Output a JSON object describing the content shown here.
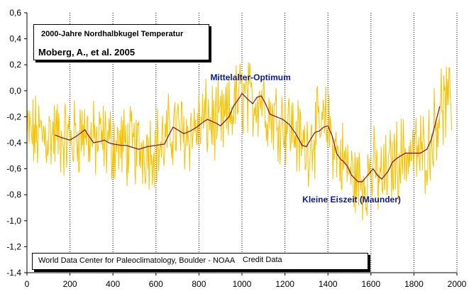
{
  "chart_data": {
    "type": "line",
    "title": "2000-Jahre Nordhalbkugel Temperatur",
    "subtitle": "Moberg, A., et al. 2005",
    "xlabel": "",
    "ylabel": "",
    "xlim": [
      0,
      2000
    ],
    "ylim": [
      -1.4,
      0.6
    ],
    "x_ticks": [
      "0",
      "200",
      "400",
      "600",
      "800",
      "1000",
      "1200",
      "1400",
      "1600",
      "1800",
      "2000"
    ],
    "y_ticks": [
      "0,6",
      "0,4",
      "0,2",
      "0,0",
      "-0,2",
      "-0,4",
      "-0,6",
      "-0,8",
      "-1,0",
      "-1,2",
      "-1,4"
    ],
    "grid": {
      "vertical": "dotted",
      "horizontal": false
    },
    "annotations": [
      {
        "text": "Mittelalter-Optimum",
        "x": 1040,
        "y": 0.08
      },
      {
        "text": "Kleine Eiszeit (Maunder)",
        "x": 1510,
        "y": -0.86
      }
    ],
    "credit": {
      "source": "World Data Center for Paleoclimatology, Boulder - NOAA",
      "note": "Credit Data"
    },
    "colors": {
      "annual": "#f5c200",
      "smoothed": "#7a0f2a",
      "annotation": "#0b1a8f"
    },
    "series": [
      {
        "x": [
          130,
          160,
          200,
          230,
          270,
          280,
          310,
          340,
          360,
          380,
          400,
          440,
          460,
          480,
          500,
          520,
          560,
          600,
          640,
          660,
          680,
          700,
          730,
          760,
          790,
          820,
          840,
          880,
          900,
          940,
          960,
          990,
          1000,
          1030,
          1050,
          1070,
          1090,
          1110,
          1130,
          1160,
          1190,
          1220,
          1250,
          1280,
          1300,
          1320,
          1340,
          1360,
          1380,
          1400,
          1420,
          1440,
          1460,
          1470,
          1490,
          1510,
          1540,
          1560,
          1590,
          1610,
          1630,
          1650,
          1680,
          1700,
          1720,
          1740,
          1760,
          1790,
          1810,
          1830,
          1860,
          1880,
          1900,
          1920
        ],
        "values": [
          -0.34,
          -0.36,
          -0.38,
          -0.35,
          -0.3,
          -0.33,
          -0.4,
          -0.39,
          -0.38,
          -0.4,
          -0.41,
          -0.42,
          -0.42,
          -0.43,
          -0.44,
          -0.45,
          -0.43,
          -0.42,
          -0.41,
          -0.34,
          -0.28,
          -0.3,
          -0.33,
          -0.31,
          -0.28,
          -0.24,
          -0.22,
          -0.25,
          -0.27,
          -0.2,
          -0.12,
          -0.05,
          -0.02,
          -0.07,
          -0.1,
          -0.05,
          -0.04,
          -0.1,
          -0.18,
          -0.2,
          -0.22,
          -0.26,
          -0.33,
          -0.42,
          -0.43,
          -0.37,
          -0.32,
          -0.31,
          -0.28,
          -0.27,
          -0.35,
          -0.48,
          -0.53,
          -0.54,
          -0.58,
          -0.65,
          -0.7,
          -0.7,
          -0.64,
          -0.6,
          -0.65,
          -0.68,
          -0.62,
          -0.55,
          -0.52,
          -0.5,
          -0.48,
          -0.48,
          -0.48,
          -0.48,
          -0.45,
          -0.38,
          -0.25,
          -0.12
        ]
      }
    ]
  }
}
